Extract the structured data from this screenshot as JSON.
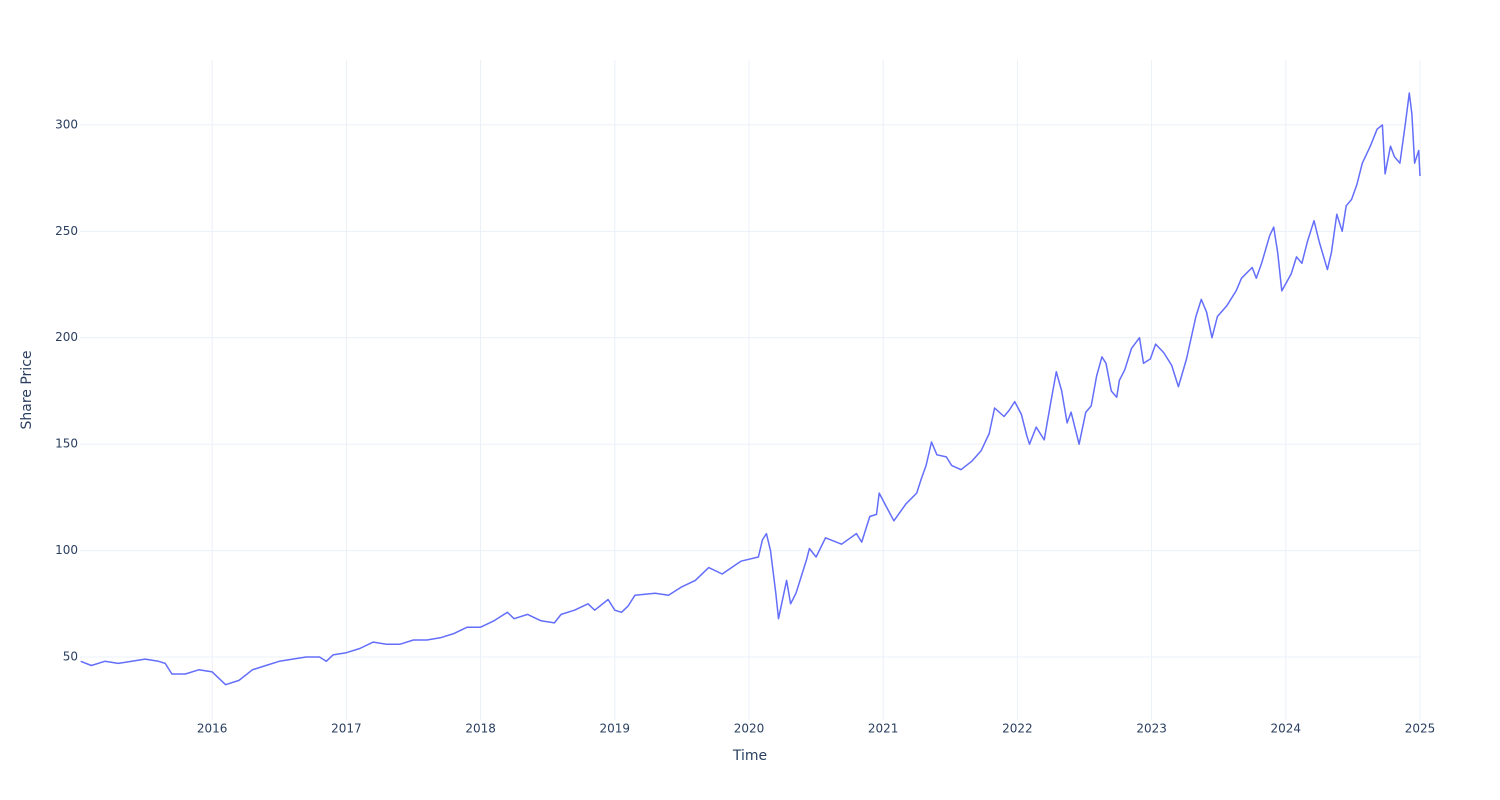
{
  "chart_data": {
    "type": "line",
    "x_label": "Time",
    "y_label": "Share Price",
    "color": "#636efa",
    "grid": true,
    "xlim": [
      2015.015,
      2025.0
    ],
    "ylim": [
      20.4,
      330.5
    ],
    "xticks": [
      2016,
      2017,
      2018,
      2019,
      2020,
      2021,
      2022,
      2023,
      2024,
      2025
    ],
    "yticks": [
      50,
      100,
      150,
      200,
      250,
      300
    ],
    "x": [
      2015.02,
      2015.1,
      2015.2,
      2015.3,
      2015.4,
      2015.5,
      2015.6,
      2015.65,
      2015.7,
      2015.8,
      2015.9,
      2016.0,
      2016.05,
      2016.1,
      2016.2,
      2016.3,
      2016.4,
      2016.5,
      2016.6,
      2016.7,
      2016.8,
      2016.85,
      2016.9,
      2017.0,
      2017.1,
      2017.2,
      2017.3,
      2017.4,
      2017.5,
      2017.6,
      2017.7,
      2017.8,
      2017.9,
      2018.0,
      2018.1,
      2018.2,
      2018.25,
      2018.35,
      2018.45,
      2018.55,
      2018.6,
      2018.7,
      2018.8,
      2018.85,
      2018.95,
      2019.0,
      2019.05,
      2019.1,
      2019.15,
      2019.3,
      2019.4,
      2019.5,
      2019.6,
      2019.7,
      2019.8,
      2019.87,
      2019.94,
      2020.07,
      2020.1,
      2020.13,
      2020.16,
      2020.2,
      2020.22,
      2020.28,
      2020.31,
      2020.35,
      2020.43,
      2020.45,
      2020.5,
      2020.57,
      2020.69,
      2020.8,
      2020.84,
      2020.9,
      2020.95,
      2020.97,
      2021.02,
      2021.08,
      2021.17,
      2021.25,
      2021.28,
      2021.32,
      2021.36,
      2021.4,
      2021.47,
      2021.51,
      2021.58,
      2021.66,
      2021.73,
      2021.79,
      2021.83,
      2021.9,
      2021.94,
      2021.98,
      2022.03,
      2022.07,
      2022.09,
      2022.14,
      2022.2,
      2022.25,
      2022.29,
      2022.33,
      2022.37,
      2022.4,
      2022.46,
      2022.51,
      2022.55,
      2022.59,
      2022.63,
      2022.66,
      2022.7,
      2022.74,
      2022.76,
      2022.8,
      2022.85,
      2022.91,
      2022.94,
      2022.99,
      2023.03,
      2023.09,
      2023.15,
      2023.2,
      2023.26,
      2023.33,
      2023.37,
      2023.41,
      2023.45,
      2023.49,
      2023.56,
      2023.63,
      2023.67,
      2023.75,
      2023.78,
      2023.82,
      2023.88,
      2023.91,
      2023.94,
      2023.97,
      2024.04,
      2024.08,
      2024.12,
      2024.16,
      2024.21,
      2024.25,
      2024.31,
      2024.34,
      2024.38,
      2024.42,
      2024.45,
      2024.49,
      2024.53,
      2024.57,
      2024.63,
      2024.68,
      2024.72,
      2024.74,
      2024.78,
      2024.81,
      2024.85,
      2024.89,
      2024.92,
      2024.94,
      2024.96,
      2024.99,
      2025.0
    ],
    "values": [
      48,
      46,
      48,
      47,
      48,
      49,
      48,
      47,
      42,
      42,
      44,
      43,
      40,
      37,
      39,
      44,
      46,
      48,
      49,
      50,
      50,
      48,
      51,
      52,
      54,
      57,
      56,
      56,
      58,
      58,
      59,
      61,
      64,
      64,
      67,
      71,
      68,
      70,
      67,
      66,
      70,
      72,
      75,
      72,
      77,
      72,
      71,
      74,
      79,
      80,
      79,
      83,
      86,
      92,
      89,
      92,
      95,
      97,
      105,
      108,
      100,
      80,
      68,
      86,
      75,
      80,
      96,
      101,
      97,
      106,
      103,
      108,
      104,
      116,
      117,
      127,
      121,
      114,
      122,
      127,
      133,
      140,
      151,
      145,
      144,
      140,
      138,
      142,
      147,
      155,
      167,
      163,
      166,
      170,
      164,
      154,
      150,
      158,
      152,
      170,
      184,
      175,
      160,
      165,
      150,
      165,
      168,
      182,
      191,
      188,
      175,
      172,
      180,
      185,
      195,
      200,
      188,
      190,
      197,
      193,
      187,
      177,
      190,
      210,
      218,
      212,
      200,
      210,
      215,
      222,
      228,
      233,
      228,
      235,
      248,
      252,
      240,
      222,
      230,
      238,
      235,
      245,
      255,
      245,
      232,
      240,
      258,
      250,
      262,
      265,
      272,
      282,
      290,
      298,
      300,
      277,
      290,
      285,
      282,
      300,
      315,
      305,
      282,
      288,
      276
    ]
  }
}
